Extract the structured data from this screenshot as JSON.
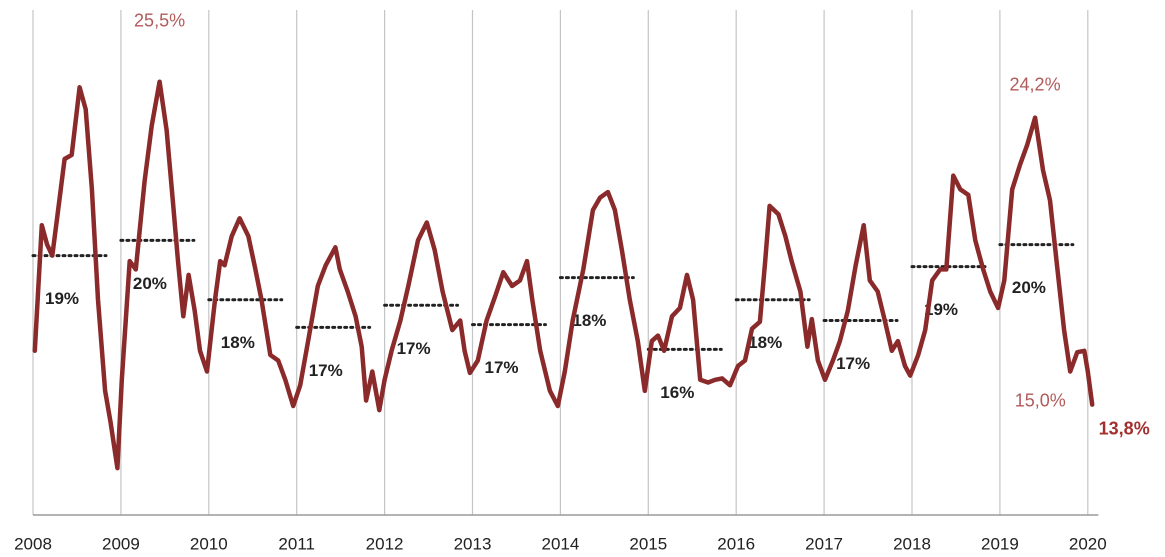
{
  "chart_data": {
    "type": "line",
    "x": [
      2008.02,
      2008.1,
      2008.16,
      2008.22,
      2008.28,
      2008.36,
      2008.44,
      2008.53,
      2008.6,
      2008.67,
      2008.74,
      2008.82,
      2008.88,
      2008.96,
      2009.01,
      2009.1,
      2009.17,
      2009.27,
      2009.35,
      2009.44,
      2009.52,
      2009.59,
      2009.65,
      2009.71,
      2009.77,
      2009.84,
      2009.9,
      2009.98,
      2010.07,
      2010.13,
      2010.18,
      2010.26,
      2010.35,
      2010.45,
      2010.53,
      2010.6,
      2010.7,
      2010.79,
      2010.87,
      2010.96,
      2011.04,
      2011.13,
      2011.24,
      2011.33,
      2011.44,
      2011.49,
      2011.58,
      2011.67,
      2011.74,
      2011.79,
      2011.86,
      2011.94,
      2012.0,
      2012.08,
      2012.18,
      2012.27,
      2012.38,
      2012.48,
      2012.57,
      2012.66,
      2012.77,
      2012.86,
      2012.91,
      2012.97,
      2013.06,
      2013.16,
      2013.26,
      2013.35,
      2013.45,
      2013.54,
      2013.62,
      2013.68,
      2013.77,
      2013.88,
      2013.97,
      2014.05,
      2014.14,
      2014.26,
      2014.37,
      2014.45,
      2014.54,
      2014.62,
      2014.7,
      2014.79,
      2014.88,
      2014.96,
      2015.04,
      2015.11,
      2015.18,
      2015.27,
      2015.36,
      2015.44,
      2015.51,
      2015.59,
      2015.68,
      2015.76,
      2015.84,
      2015.93,
      2016.02,
      2016.1,
      2016.18,
      2016.27,
      2016.33,
      2016.38,
      2016.48,
      2016.56,
      2016.63,
      2016.73,
      2016.81,
      2016.86,
      2016.93,
      2017.01,
      2017.1,
      2017.18,
      2017.27,
      2017.36,
      2017.45,
      2017.52,
      2017.61,
      2017.69,
      2017.77,
      2017.84,
      2017.92,
      2017.98,
      2018.07,
      2018.15,
      2018.23,
      2018.32,
      2018.39,
      2018.47,
      2018.55,
      2018.64,
      2018.72,
      2018.81,
      2018.89,
      2018.98,
      2019.05,
      2019.14,
      2019.23,
      2019.31,
      2019.4,
      2019.49,
      2019.57,
      2019.65,
      2019.73,
      2019.8,
      2019.88,
      2019.96,
      2020.0,
      2020.05
    ],
    "series": [
      {
        "color": "#8b2a2a",
        "values": [
          15.75,
          20.3,
          19.6,
          19.2,
          20.7,
          22.7,
          22.85,
          25.3,
          24.5,
          21.6,
          17.6,
          14.3,
          13.2,
          11.5,
          14.7,
          19.0,
          18.7,
          21.9,
          23.9,
          25.5,
          23.75,
          21.2,
          19.0,
          17.0,
          18.5,
          17.2,
          15.75,
          15.0,
          17.6,
          19.0,
          18.85,
          19.9,
          20.55,
          19.9,
          18.7,
          17.6,
          15.6,
          15.4,
          14.7,
          13.75,
          14.5,
          16.1,
          18.1,
          18.85,
          19.5,
          18.7,
          17.9,
          17.0,
          15.9,
          13.95,
          15.0,
          13.6,
          14.7,
          15.75,
          16.85,
          18.1,
          19.75,
          20.4,
          19.4,
          17.9,
          16.5,
          16.85,
          15.75,
          14.95,
          15.4,
          16.85,
          17.75,
          18.6,
          18.1,
          18.3,
          19.0,
          17.6,
          15.75,
          14.3,
          13.75,
          15.0,
          16.85,
          18.7,
          20.85,
          21.3,
          21.5,
          20.85,
          19.4,
          17.6,
          16.1,
          14.3,
          16.1,
          16.3,
          15.75,
          17.0,
          17.3,
          18.5,
          17.6,
          14.7,
          14.6,
          14.7,
          14.75,
          14.5,
          15.2,
          15.4,
          16.55,
          16.8,
          19.0,
          21.0,
          20.7,
          19.9,
          19.0,
          17.9,
          15.9,
          16.9,
          15.4,
          14.7,
          15.4,
          16.1,
          17.2,
          18.85,
          20.3,
          18.3,
          17.9,
          16.85,
          15.75,
          16.1,
          15.2,
          14.85,
          15.6,
          16.5,
          18.3,
          18.7,
          18.7,
          22.1,
          21.6,
          21.4,
          19.75,
          18.7,
          17.9,
          17.3,
          18.3,
          21.6,
          22.5,
          23.2,
          24.2,
          22.3,
          21.2,
          18.85,
          16.5,
          15.0,
          15.7,
          15.75,
          15.0,
          13.8
        ]
      }
    ],
    "annual_average": {
      "x": [
        2008,
        2009,
        2010,
        2011,
        2012,
        2013,
        2014,
        2015,
        2016,
        2017,
        2018,
        2019
      ],
      "values": [
        19.2,
        19.75,
        17.6,
        16.6,
        17.4,
        16.7,
        18.4,
        15.8,
        17.6,
        16.85,
        18.8,
        19.6
      ],
      "value_labels": [
        "19%",
        "20%",
        "18%",
        "17%",
        "17%",
        "17%",
        "18%",
        "16%",
        "18%",
        "17%",
        "19%",
        "20%"
      ]
    },
    "annotations": [
      {
        "text": "25,5%",
        "x": 2009.44,
        "y": 25.5
      },
      {
        "text": "24,2%",
        "x": 2019.4,
        "y": 24.2
      },
      {
        "text": "15,0%",
        "x": 2019.8,
        "y": 15.0
      },
      {
        "text": "13,8%",
        "x": 2020.05,
        "y": 13.8
      }
    ],
    "xlim": [
      2008,
      2020.12
    ],
    "ylim": [
      9.8,
      28.1
    ],
    "xticks": [
      2008,
      2009,
      2010,
      2011,
      2012,
      2013,
      2014,
      2015,
      2016,
      2017,
      2018,
      2019,
      2020
    ],
    "grid": true
  }
}
